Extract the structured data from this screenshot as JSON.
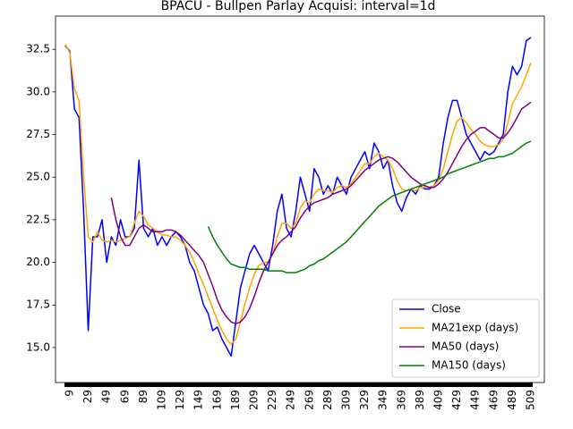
{
  "chart_data": {
    "type": "line",
    "title": "BPACU - Bullpen Parlay Acquisi: interval=1d",
    "x": [
      4,
      9,
      14,
      19,
      24,
      29,
      34,
      39,
      44,
      49,
      54,
      59,
      64,
      69,
      74,
      79,
      84,
      89,
      94,
      99,
      104,
      109,
      114,
      119,
      124,
      129,
      134,
      139,
      144,
      149,
      154,
      159,
      164,
      169,
      174,
      179,
      184,
      189,
      194,
      199,
      204,
      209,
      214,
      219,
      224,
      229,
      234,
      239,
      244,
      249,
      254,
      259,
      264,
      269,
      274,
      279,
      284,
      289,
      294,
      299,
      304,
      309,
      314,
      319,
      324,
      329,
      334,
      339,
      344,
      349,
      354,
      359,
      364,
      369,
      374,
      379,
      384,
      389,
      394,
      399,
      404,
      409,
      414,
      419,
      424,
      429,
      434,
      439,
      444,
      449,
      454,
      459,
      464,
      469,
      474,
      479,
      484,
      489,
      494,
      499,
      504,
      509
    ],
    "series": [
      {
        "name": "Close",
        "color": "#0000ff",
        "values": [
          32.7,
          32.4,
          29.0,
          28.5,
          23.0,
          16.0,
          21.5,
          21.5,
          22.5,
          20.0,
          21.5,
          21.0,
          22.5,
          21.5,
          21.5,
          22.0,
          26.0,
          22.0,
          21.5,
          22.0,
          21.0,
          21.5,
          21.0,
          21.5,
          21.8,
          21.5,
          21.0,
          20.0,
          19.5,
          18.5,
          17.5,
          17.0,
          16.0,
          16.2,
          15.5,
          15.0,
          14.5,
          16.5,
          18.5,
          19.5,
          20.5,
          21.0,
          20.5,
          20.0,
          19.5,
          21.0,
          23.0,
          24.0,
          22.0,
          21.5,
          23.0,
          25.0,
          24.0,
          23.0,
          25.5,
          25.0,
          24.0,
          24.5,
          24.0,
          25.0,
          24.5,
          24.0,
          25.0,
          25.5,
          26.0,
          26.5,
          25.5,
          27.0,
          26.5,
          25.5,
          26.0,
          24.5,
          23.5,
          23.0,
          23.8,
          24.3,
          24.0,
          24.5,
          24.3,
          24.3,
          24.5,
          25.0,
          27.0,
          28.5,
          29.5,
          29.5,
          28.5,
          27.5,
          27.0,
          26.5,
          26.0,
          26.5,
          26.3,
          26.5,
          27.0,
          27.5,
          30.0,
          31.5,
          31.0,
          31.5,
          33.0,
          33.2
        ]
      },
      {
        "name": "MA21exp (days)",
        "color": "#ffa500",
        "values": [
          32.8,
          32.3,
          30.2,
          29.5,
          25.0,
          21.5,
          21.2,
          21.8,
          21.3,
          21.2,
          21.3,
          21.2,
          21.3,
          21.4,
          21.5,
          22.3,
          23.0,
          22.7,
          22.2,
          22.0,
          21.8,
          21.6,
          21.6,
          21.5,
          21.5,
          21.3,
          21.0,
          20.6,
          20.0,
          19.3,
          18.7,
          18.0,
          17.3,
          16.6,
          16.0,
          15.5,
          15.2,
          15.5,
          16.5,
          17.6,
          18.5,
          19.3,
          19.8,
          20.0,
          20.0,
          20.5,
          21.5,
          22.3,
          22.3,
          22.0,
          22.3,
          23.2,
          23.6,
          23.5,
          24.0,
          24.3,
          24.2,
          24.2,
          24.1,
          24.4,
          24.5,
          24.4,
          24.6,
          25.0,
          25.4,
          25.8,
          25.8,
          26.2,
          26.4,
          26.2,
          26.0,
          25.5,
          24.8,
          24.3,
          24.2,
          24.3,
          24.2,
          24.4,
          24.4,
          24.4,
          24.5,
          24.8,
          25.5,
          26.5,
          27.5,
          28.3,
          28.5,
          28.2,
          27.8,
          27.5,
          27.1,
          26.9,
          26.8,
          26.8,
          26.9,
          27.2,
          28.2,
          29.3,
          29.8,
          30.3,
          31.0,
          31.7
        ]
      },
      {
        "name": "MA50 (days)",
        "color": "#800080",
        "values": [
          null,
          null,
          null,
          null,
          null,
          null,
          null,
          null,
          null,
          null,
          23.8,
          22.5,
          21.5,
          21.0,
          21.0,
          21.5,
          22.0,
          22.2,
          22.0,
          21.8,
          21.8,
          21.8,
          21.9,
          21.9,
          21.8,
          21.6,
          21.3,
          21.0,
          20.7,
          20.4,
          20.0,
          19.3,
          18.6,
          17.8,
          17.2,
          16.8,
          16.5,
          16.4,
          16.5,
          16.8,
          17.3,
          18.0,
          18.8,
          19.5,
          20.0,
          20.5,
          21.0,
          21.3,
          21.5,
          21.8,
          22.1,
          22.6,
          23.0,
          23.3,
          23.5,
          23.6,
          23.7,
          23.8,
          24.0,
          24.1,
          24.2,
          24.3,
          24.5,
          24.8,
          25.1,
          25.4,
          25.6,
          25.8,
          26.0,
          26.1,
          26.2,
          26.1,
          25.9,
          25.6,
          25.3,
          25.0,
          24.8,
          24.6,
          24.5,
          24.4,
          24.4,
          24.6,
          24.9,
          25.3,
          25.8,
          26.3,
          26.8,
          27.2,
          27.5,
          27.7,
          27.9,
          27.9,
          27.7,
          27.5,
          27.3,
          27.3,
          27.6,
          28.0,
          28.5,
          29.0,
          29.2,
          29.4
        ]
      },
      {
        "name": "MA150 (days)",
        "color": "#008000",
        "values": [
          null,
          null,
          null,
          null,
          null,
          null,
          null,
          null,
          null,
          null,
          null,
          null,
          null,
          null,
          null,
          null,
          null,
          null,
          null,
          null,
          null,
          null,
          null,
          null,
          null,
          null,
          null,
          null,
          null,
          null,
          null,
          22.1,
          21.5,
          21.0,
          20.6,
          20.2,
          19.9,
          19.8,
          19.7,
          19.7,
          19.6,
          19.6,
          19.6,
          19.6,
          19.5,
          19.5,
          19.5,
          19.5,
          19.4,
          19.4,
          19.4,
          19.5,
          19.6,
          19.8,
          19.9,
          20.1,
          20.2,
          20.4,
          20.6,
          20.8,
          21.0,
          21.2,
          21.5,
          21.8,
          22.1,
          22.4,
          22.7,
          23.0,
          23.3,
          23.5,
          23.7,
          23.9,
          24.0,
          24.1,
          24.2,
          24.3,
          24.4,
          24.5,
          24.6,
          24.7,
          24.8,
          24.9,
          25.0,
          25.2,
          25.3,
          25.4,
          25.5,
          25.6,
          25.7,
          25.8,
          25.9,
          26.0,
          26.1,
          26.1,
          26.2,
          26.2,
          26.3,
          26.4,
          26.6,
          26.8,
          27.0,
          27.1
        ]
      }
    ],
    "xlim": [
      -6.5,
      523.6
    ],
    "ylim": [
      12.95,
      34.45
    ],
    "xticks": [
      9,
      29,
      49,
      69,
      89,
      109,
      129,
      149,
      169,
      189,
      209,
      229,
      249,
      269,
      289,
      309,
      329,
      349,
      369,
      389,
      409,
      429,
      449,
      469,
      489,
      509
    ],
    "yticks": [
      {
        "value": 15,
        "label": "15.0"
      },
      17.5,
      {
        "value": 20,
        "label": "20.0"
      },
      22.5,
      {
        "value": 25,
        "label": "25.0"
      },
      27.5,
      {
        "value": 30,
        "label": "30.0"
      },
      32.5
    ],
    "legend": "lower right"
  }
}
